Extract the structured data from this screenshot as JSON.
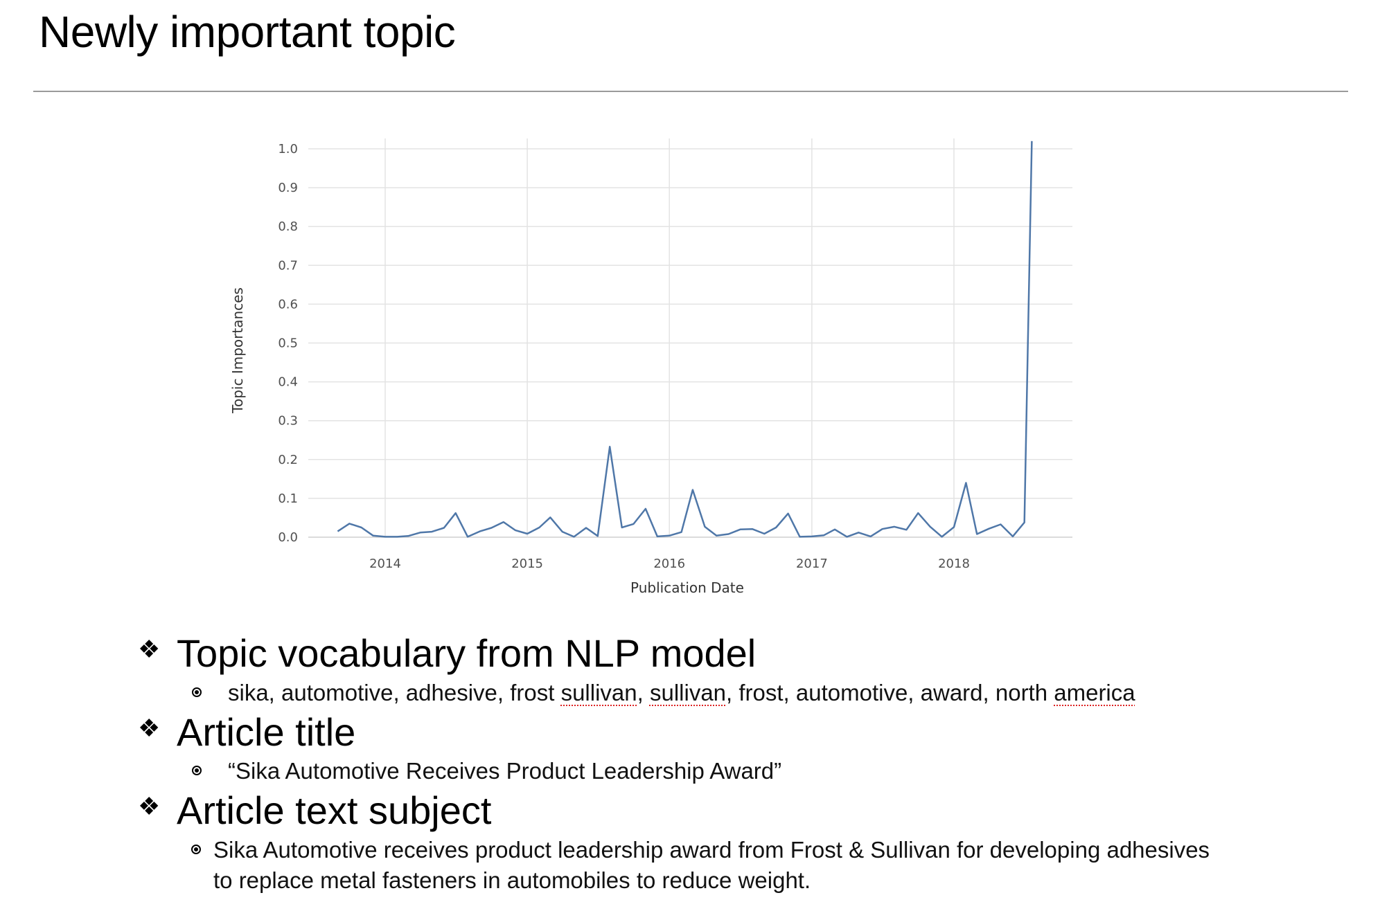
{
  "slide": {
    "title": "Newly important topic"
  },
  "chart_data": {
    "type": "line",
    "title": "",
    "xlabel": "Publication Date",
    "ylabel": "Topic Importances",
    "ylim": [
      0,
      1.02
    ],
    "xlim": [
      "2013-05-01",
      "2018-12-01"
    ],
    "y_ticks": [
      "0.0",
      "0.1",
      "0.2",
      "0.3",
      "0.4",
      "0.5",
      "0.6",
      "0.7",
      "0.8",
      "0.9",
      "1.0"
    ],
    "x_ticks": [
      "2014",
      "2015",
      "2016",
      "2017",
      "2018"
    ],
    "grid": true,
    "line_color": "#4f77a8",
    "x": [
      "2013-09-01",
      "2013-10-01",
      "2013-11-01",
      "2013-12-01",
      "2014-01-01",
      "2014-02-01",
      "2014-03-01",
      "2014-04-01",
      "2014-05-01",
      "2014-06-01",
      "2014-07-01",
      "2014-08-01",
      "2014-09-01",
      "2014-10-01",
      "2014-11-01",
      "2014-12-01",
      "2015-01-01",
      "2015-02-01",
      "2015-03-01",
      "2015-04-01",
      "2015-05-01",
      "2015-06-01",
      "2015-07-01",
      "2015-08-01",
      "2015-09-01",
      "2015-10-01",
      "2015-11-01",
      "2015-12-01",
      "2016-01-01",
      "2016-02-01",
      "2016-03-01",
      "2016-04-01",
      "2016-05-01",
      "2016-06-01",
      "2016-07-01",
      "2016-08-01",
      "2016-09-01",
      "2016-10-01",
      "2016-11-01",
      "2016-12-01",
      "2017-01-01",
      "2017-02-01",
      "2017-03-01",
      "2017-04-01",
      "2017-05-01",
      "2017-06-01",
      "2017-07-01",
      "2017-08-01",
      "2017-09-01",
      "2017-10-01",
      "2017-11-01",
      "2017-12-01",
      "2018-01-01",
      "2018-02-01",
      "2018-03-01",
      "2018-04-01",
      "2018-05-01",
      "2018-06-01",
      "2018-07-01",
      "2018-07-20"
    ],
    "values": [
      0.015,
      0.035,
      0.025,
      0.004,
      0.001,
      0.001,
      0.003,
      0.012,
      0.014,
      0.024,
      0.062,
      0.001,
      0.015,
      0.024,
      0.039,
      0.018,
      0.009,
      0.025,
      0.051,
      0.014,
      0.001,
      0.024,
      0.003,
      0.233,
      0.025,
      0.034,
      0.073,
      0.002,
      0.004,
      0.013,
      0.122,
      0.027,
      0.004,
      0.008,
      0.02,
      0.021,
      0.009,
      0.025,
      0.061,
      0.001,
      0.002,
      0.005,
      0.02,
      0.001,
      0.012,
      0.002,
      0.021,
      0.027,
      0.019,
      0.062,
      0.027,
      0.001,
      0.026,
      0.14,
      0.008,
      0.022,
      0.033,
      0.002,
      0.038,
      1.02
    ]
  },
  "bullets": [
    {
      "heading": "Topic vocabulary from NLP model",
      "sub": {
        "parts": [
          "sika, automotive, adhesive, frost ",
          "sullivan",
          ", ",
          "sullivan",
          ", frost, automotive, award, north ",
          "america"
        ]
      }
    },
    {
      "heading": "Article title",
      "sub": {
        "text": "“Sika Automotive Receives Product Leadership Award”"
      }
    },
    {
      "heading": "Article text subject",
      "sub": {
        "text": "Sika Automotive receives product leadership award from Frost & Sullivan for developing adhesives to replace metal fasteners in automobiles to reduce weight."
      }
    }
  ],
  "icons": {
    "level1": "diamond-bullet-icon",
    "level2": "circle-dot-bullet-icon"
  }
}
